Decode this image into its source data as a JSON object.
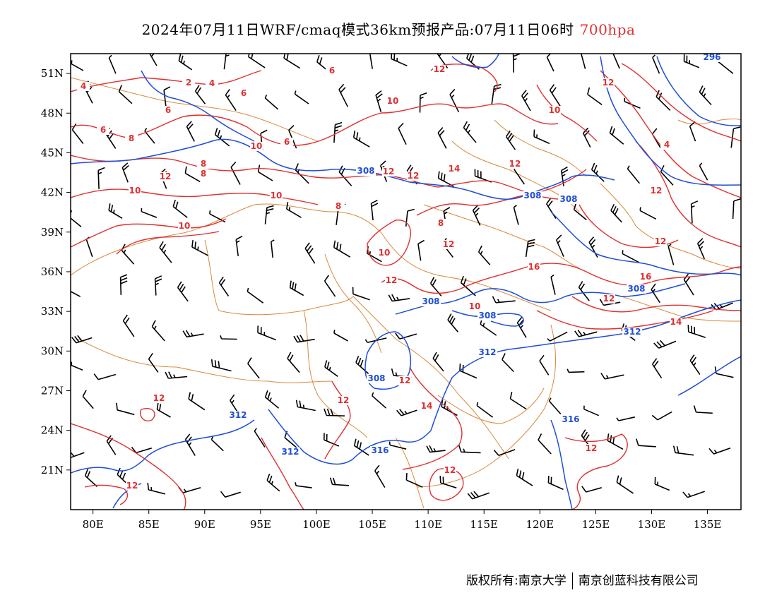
{
  "title": {
    "main": "2024年07月11日WRF/cmaq模式36km预报产品:07月11日06时",
    "level": "700hpa"
  },
  "map": {
    "lon_range": [
      78,
      138
    ],
    "lat_range": [
      18,
      52.5
    ],
    "lon_ticks": [
      "80E",
      "85E",
      "90E",
      "95E",
      "100E",
      "105E",
      "110E",
      "115E",
      "120E",
      "125E",
      "130E",
      "135E"
    ],
    "lat_ticks": [
      "51N",
      "48N",
      "45N",
      "42N",
      "39N",
      "36N",
      "33N",
      "30N",
      "27N",
      "24N",
      "21N"
    ],
    "colors": {
      "temperature": "#e03030",
      "height": "#1e4ed8",
      "boundary": "#d98a3a",
      "wind": "#000000"
    },
    "temperature_labels": [
      "4",
      "2",
      "4",
      "6",
      "6",
      "8",
      "6",
      "6",
      "10",
      "6",
      "8",
      "8",
      "10",
      "10",
      "12",
      "12",
      "14",
      "12",
      "10",
      "10",
      "12",
      "12",
      "16",
      "16",
      "12",
      "14",
      "10",
      "12",
      "10",
      "10",
      "12",
      "12",
      "12",
      "12",
      "14",
      "12",
      "12",
      "12",
      "12",
      "12",
      "4",
      "12",
      "8",
      "8"
    ],
    "height_labels": [
      "308",
      "308",
      "308",
      "308",
      "308",
      "308",
      "312",
      "312",
      "308",
      "312",
      "312",
      "316",
      "316",
      "296"
    ]
  },
  "footer": {
    "left": "版权所有:南京大学",
    "right": "南京创蓝科技有限公司"
  }
}
